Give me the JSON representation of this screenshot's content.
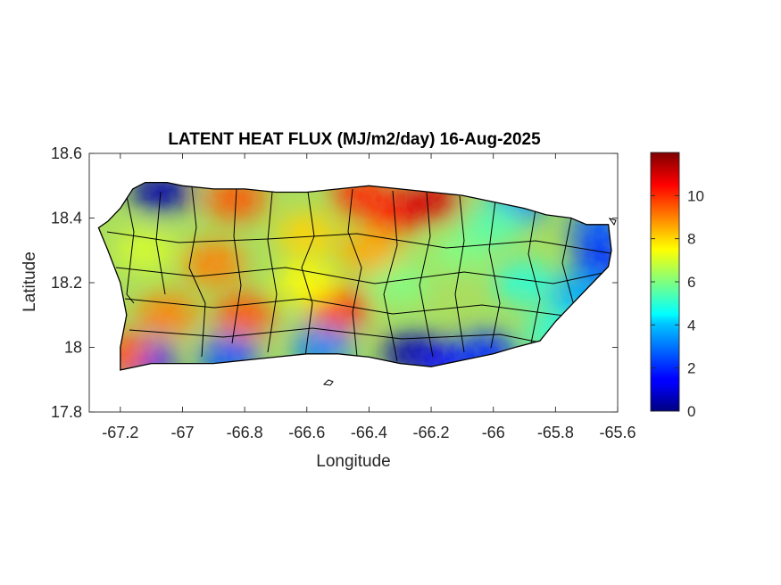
{
  "chart_data": {
    "type": "heatmap",
    "title": "LATENT HEAT FLUX (MJ/m2/day) 16-Aug-2025",
    "xlabel": "Longitude",
    "ylabel": "Latitude",
    "xlim": [
      -67.3,
      -65.6
    ],
    "ylim": [
      17.8,
      18.6
    ],
    "x_ticks": [
      -67.2,
      -67,
      -66.8,
      -66.6,
      -66.4,
      -66.2,
      -66,
      -65.8,
      -65.6
    ],
    "x_tick_labels": [
      "-67.2",
      "-67",
      "-66.8",
      "-66.6",
      "-66.4",
      "-66.2",
      "-66",
      "-65.8",
      "-65.6"
    ],
    "y_ticks": [
      17.8,
      18,
      18.2,
      18.4,
      18.6
    ],
    "y_tick_labels": [
      "17.8",
      "18",
      "18.2",
      "18.4",
      "18.6"
    ],
    "colorbar": {
      "colormap": "jet",
      "range": [
        0,
        12
      ],
      "ticks": [
        0,
        2,
        4,
        6,
        8,
        10
      ],
      "tick_labels": [
        "0",
        "2",
        "4",
        "6",
        "8",
        "10"
      ]
    },
    "island_outline": [
      [
        -67.27,
        18.37
      ],
      [
        -67.24,
        18.39
      ],
      [
        -67.2,
        18.43
      ],
      [
        -67.16,
        18.49
      ],
      [
        -67.12,
        18.51
      ],
      [
        -67.05,
        18.51
      ],
      [
        -67.0,
        18.5
      ],
      [
        -66.9,
        18.49
      ],
      [
        -66.8,
        18.49
      ],
      [
        -66.7,
        18.48
      ],
      [
        -66.6,
        18.48
      ],
      [
        -66.5,
        18.49
      ],
      [
        -66.4,
        18.5
      ],
      [
        -66.3,
        18.49
      ],
      [
        -66.2,
        18.48
      ],
      [
        -66.1,
        18.47
      ],
      [
        -66.0,
        18.45
      ],
      [
        -65.9,
        18.43
      ],
      [
        -65.83,
        18.41
      ],
      [
        -65.75,
        18.4
      ],
      [
        -65.7,
        18.38
      ],
      [
        -65.63,
        18.38
      ],
      [
        -65.62,
        18.3
      ],
      [
        -65.63,
        18.25
      ],
      [
        -65.68,
        18.2
      ],
      [
        -65.73,
        18.15
      ],
      [
        -65.8,
        18.08
      ],
      [
        -65.85,
        18.02
      ],
      [
        -65.93,
        18.0
      ],
      [
        -66.0,
        17.98
      ],
      [
        -66.1,
        17.96
      ],
      [
        -66.2,
        17.94
      ],
      [
        -66.3,
        17.95
      ],
      [
        -66.4,
        17.97
      ],
      [
        -66.5,
        17.98
      ],
      [
        -66.6,
        17.98
      ],
      [
        -66.7,
        17.97
      ],
      [
        -66.8,
        17.96
      ],
      [
        -66.9,
        17.95
      ],
      [
        -67.0,
        17.95
      ],
      [
        -67.1,
        17.95
      ],
      [
        -67.2,
        17.93
      ],
      [
        -67.2,
        18.0
      ],
      [
        -67.18,
        18.1
      ],
      [
        -67.2,
        18.2
      ],
      [
        -67.24,
        18.3
      ],
      [
        -67.27,
        18.37
      ]
    ],
    "flux_regions": [
      {
        "lon": -67.07,
        "lat": 18.48,
        "value": 0.5
      },
      {
        "lon": -65.93,
        "lat": 18.44,
        "value": 3.0
      },
      {
        "lon": -65.66,
        "lat": 18.36,
        "value": 2.5
      },
      {
        "lon": -65.65,
        "lat": 18.26,
        "value": 2.0
      },
      {
        "lon": -65.72,
        "lat": 18.16,
        "value": 3.5
      },
      {
        "lon": -65.8,
        "lat": 18.05,
        "value": 5.0
      },
      {
        "lon": -66.26,
        "lat": 17.98,
        "value": 0.5
      },
      {
        "lon": -66.14,
        "lat": 17.95,
        "value": 1.5
      },
      {
        "lon": -66.02,
        "lat": 17.98,
        "value": 2.0
      },
      {
        "lon": -66.55,
        "lat": 18.0,
        "value": 3.0
      },
      {
        "lon": -66.85,
        "lat": 17.97,
        "value": 2.5
      },
      {
        "lon": -67.12,
        "lat": 17.96,
        "value": 1.5
      },
      {
        "lon": -67.2,
        "lat": 17.98,
        "value": 9.5
      },
      {
        "lon": -66.32,
        "lat": 18.42,
        "value": 10.5
      },
      {
        "lon": -66.2,
        "lat": 18.45,
        "value": 11.0
      },
      {
        "lon": -66.42,
        "lat": 18.47,
        "value": 10.0
      },
      {
        "lon": -66.83,
        "lat": 18.46,
        "value": 9.5
      },
      {
        "lon": -66.9,
        "lat": 18.26,
        "value": 9.0
      },
      {
        "lon": -66.5,
        "lat": 18.12,
        "value": 10.0
      },
      {
        "lon": -66.8,
        "lat": 18.1,
        "value": 9.5
      },
      {
        "lon": -67.05,
        "lat": 18.1,
        "value": 9.0
      },
      {
        "lon": -66.6,
        "lat": 18.35,
        "value": 8.0
      },
      {
        "lon": -67.12,
        "lat": 18.3,
        "value": 7.0
      },
      {
        "lon": -66.3,
        "lat": 18.2,
        "value": 6.0
      },
      {
        "lon": -66.1,
        "lat": 18.3,
        "value": 6.0
      },
      {
        "lon": -65.9,
        "lat": 18.2,
        "value": 5.0
      },
      {
        "lon": -66.0,
        "lat": 18.38,
        "value": 5.5
      },
      {
        "lon": -66.6,
        "lat": 18.2,
        "value": 7.5
      },
      {
        "lon": -66.4,
        "lat": 18.3,
        "value": 8.5
      }
    ],
    "colors": {
      "outline": "#000000",
      "axes": "#262626",
      "background": "#ffffff"
    }
  }
}
